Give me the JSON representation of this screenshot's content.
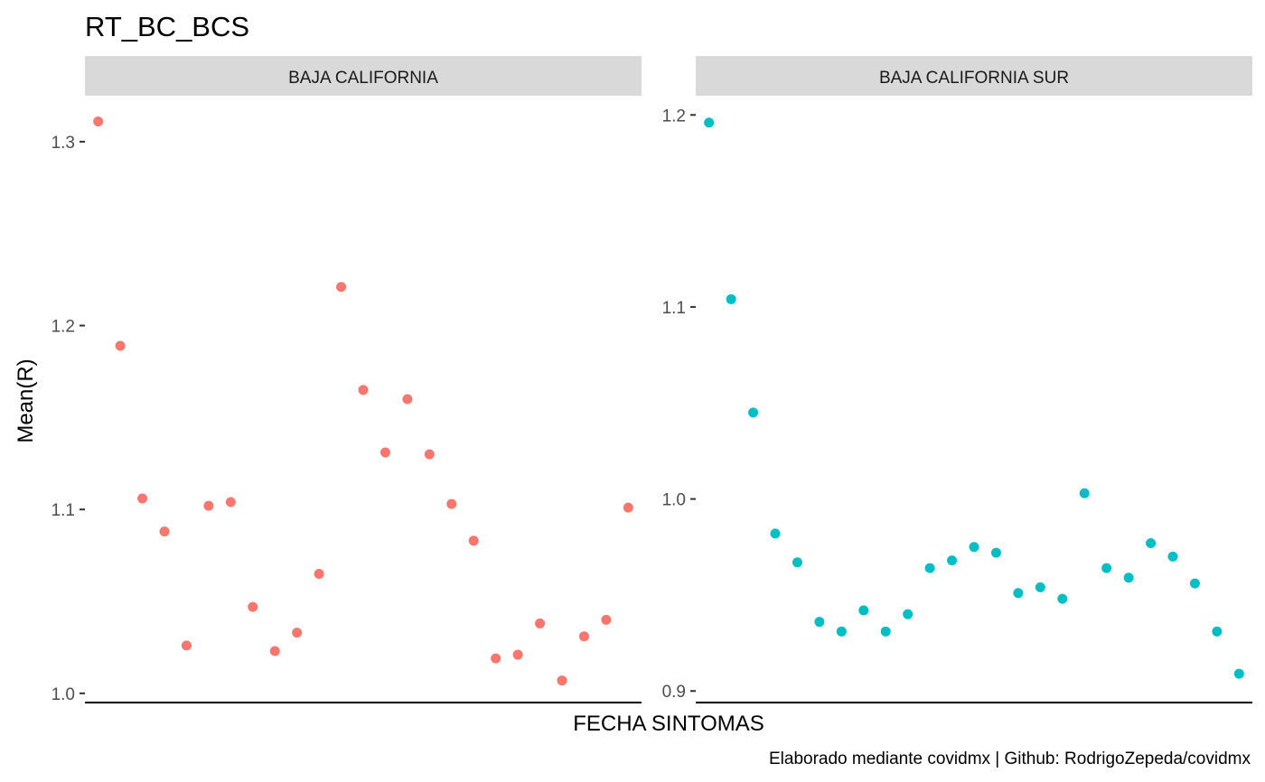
{
  "chart_data": {
    "type": "scatter",
    "title": "RT_BC_BCS",
    "xlabel": "FECHA SINTOMAS",
    "ylabel": "Mean(R)",
    "caption": "Elaborado mediante covidmx | Github: RodrigoZepeda/covidmx",
    "grid": false,
    "panels": [
      {
        "strip": "BAJA CALIFORNIA",
        "color": "#F8766D",
        "ylim": [
          0.995,
          1.325
        ],
        "yticks": [
          1.0,
          1.1,
          1.2,
          1.3
        ],
        "ytick_labels": [
          "1.0",
          "1.1",
          "1.2",
          "1.3"
        ],
        "x": [
          1,
          2,
          3,
          4,
          5,
          6,
          7,
          8,
          9,
          10,
          11,
          12,
          13,
          14,
          15,
          16,
          17,
          18,
          19,
          20,
          21,
          22,
          23,
          24,
          25
        ],
        "y": [
          1.311,
          1.189,
          1.106,
          1.088,
          1.026,
          1.102,
          1.104,
          1.047,
          1.023,
          1.033,
          1.065,
          1.221,
          1.165,
          1.131,
          1.16,
          1.13,
          1.103,
          1.083,
          1.019,
          1.021,
          1.038,
          1.007,
          1.031,
          1.04,
          1.101
        ]
      },
      {
        "strip": "BAJA CALIFORNIA SUR",
        "color": "#00BFC4",
        "ylim": [
          0.894,
          1.21
        ],
        "yticks": [
          0.9,
          1.0,
          1.1,
          1.2
        ],
        "ytick_labels": [
          "0.9",
          "1.0",
          "1.1",
          "1.2"
        ],
        "x": [
          1,
          2,
          3,
          4,
          5,
          6,
          7,
          8,
          9,
          10,
          11,
          12,
          13,
          14,
          15,
          16,
          17,
          18,
          19,
          20,
          21,
          22,
          23,
          24,
          25
        ],
        "y": [
          1.196,
          1.104,
          1.045,
          0.982,
          0.967,
          0.936,
          0.931,
          0.942,
          0.931,
          0.94,
          0.964,
          0.968,
          0.975,
          0.972,
          0.951,
          0.954,
          0.948,
          1.003,
          0.964,
          0.959,
          0.977,
          0.97,
          0.956,
          0.931,
          0.909
        ]
      }
    ]
  }
}
